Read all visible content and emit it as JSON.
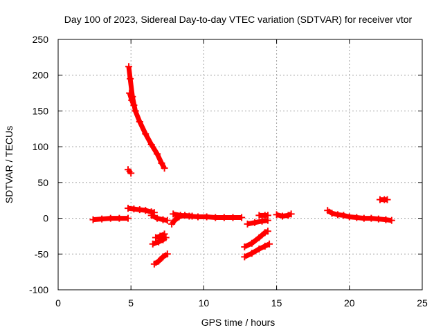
{
  "chart_data": {
    "type": "scatter",
    "title": "Day 100 of 2023, Sidereal Day-to-day VTEC variation (SDTVAR) for receiver vtor",
    "xlabel": "GPS time / hours",
    "ylabel": "SDTVAR / TECUs",
    "xlim": [
      0,
      25
    ],
    "ylim": [
      -100,
      250
    ],
    "xticks": [
      "0",
      "5",
      "10",
      "15",
      "20",
      "25"
    ],
    "yticks": [
      "-100",
      "-50",
      "0",
      "50",
      "100",
      "150",
      "200",
      "250"
    ],
    "grid": true,
    "color": "#ff0000",
    "marker": "plus",
    "series": [
      {
        "points": [
          [
            2.4,
            -2
          ],
          [
            3.0,
            -1
          ],
          [
            3.6,
            0
          ],
          [
            4.2,
            0
          ],
          [
            4.8,
            0
          ]
        ]
      },
      {
        "points": [
          [
            4.85,
            212
          ],
          [
            4.95,
            195
          ],
          [
            5.1,
            170
          ],
          [
            5.3,
            150
          ],
          [
            5.6,
            135
          ],
          [
            6.0,
            118
          ],
          [
            6.4,
            103
          ],
          [
            6.8,
            90
          ],
          [
            7.1,
            77
          ],
          [
            7.3,
            70
          ]
        ]
      },
      {
        "points": [
          [
            4.9,
            175
          ],
          [
            5.05,
            165
          ],
          [
            5.2,
            158
          ]
        ]
      },
      {
        "points": [
          [
            4.8,
            68
          ],
          [
            5.0,
            63
          ]
        ]
      },
      {
        "points": [
          [
            4.8,
            14
          ],
          [
            5.2,
            13
          ],
          [
            5.6,
            12
          ],
          [
            6.0,
            11
          ],
          [
            6.4,
            9
          ],
          [
            6.6,
            8
          ]
        ]
      },
      {
        "points": [
          [
            6.4,
            4
          ],
          [
            6.8,
            0
          ],
          [
            7.2,
            -2
          ],
          [
            7.5,
            -3
          ]
        ]
      },
      {
        "points": [
          [
            6.7,
            -27
          ],
          [
            7.0,
            -25
          ],
          [
            7.3,
            -22
          ]
        ]
      },
      {
        "points": [
          [
            6.5,
            -36
          ],
          [
            6.9,
            -33
          ],
          [
            7.2,
            -30
          ],
          [
            7.4,
            -27
          ]
        ]
      },
      {
        "points": [
          [
            6.6,
            -64
          ],
          [
            6.9,
            -60
          ],
          [
            7.2,
            -54
          ],
          [
            7.5,
            -50
          ]
        ]
      },
      {
        "points": [
          [
            7.8,
            -8
          ],
          [
            8.0,
            -3
          ],
          [
            8.3,
            2
          ],
          [
            8.7,
            4
          ],
          [
            9.2,
            3
          ]
        ]
      },
      {
        "points": [
          [
            7.9,
            6
          ],
          [
            8.4,
            4
          ],
          [
            9.0,
            3
          ],
          [
            9.6,
            2
          ],
          [
            10.2,
            2
          ],
          [
            10.8,
            1
          ],
          [
            11.4,
            1
          ],
          [
            12.0,
            1
          ],
          [
            12.6,
            1
          ]
        ]
      },
      {
        "points": [
          [
            13.0,
            -8
          ],
          [
            13.5,
            -6
          ],
          [
            14.0,
            -4
          ],
          [
            14.4,
            -3
          ]
        ]
      },
      {
        "points": [
          [
            13.8,
            4
          ],
          [
            14.2,
            4
          ],
          [
            14.4,
            4
          ]
        ]
      },
      {
        "points": [
          [
            12.8,
            -40
          ],
          [
            13.3,
            -35
          ],
          [
            13.8,
            -27
          ],
          [
            14.2,
            -20
          ],
          [
            14.4,
            -18
          ]
        ]
      },
      {
        "points": [
          [
            12.8,
            -54
          ],
          [
            13.3,
            -49
          ],
          [
            13.8,
            -43
          ],
          [
            14.2,
            -39
          ],
          [
            14.5,
            -36
          ]
        ]
      },
      {
        "points": [
          [
            15.0,
            5
          ],
          [
            15.4,
            3
          ],
          [
            15.8,
            4
          ],
          [
            16.0,
            6
          ]
        ]
      },
      {
        "points": [
          [
            18.5,
            11
          ],
          [
            18.8,
            7
          ],
          [
            19.2,
            5
          ],
          [
            19.6,
            4
          ],
          [
            20.0,
            2
          ],
          [
            20.5,
            1
          ],
          [
            21.0,
            0
          ],
          [
            21.5,
            0
          ],
          [
            22.0,
            -1
          ],
          [
            22.5,
            -2
          ],
          [
            22.9,
            -3
          ]
        ]
      },
      {
        "points": [
          [
            22.1,
            26
          ],
          [
            22.4,
            26
          ],
          [
            22.6,
            26
          ]
        ]
      }
    ]
  }
}
